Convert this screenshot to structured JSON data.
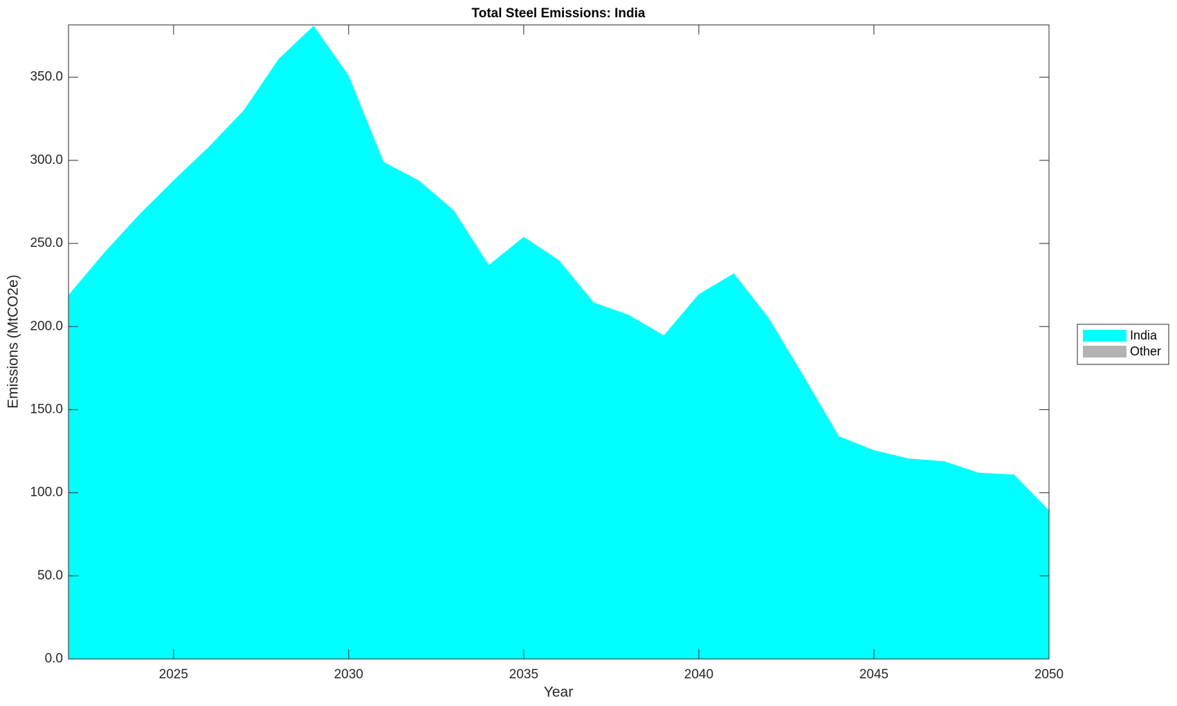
{
  "chart_data": {
    "type": "area",
    "title": "Total Steel Emissions: India",
    "x_label": "Year",
    "y_label": "Emissions (MtCO2e)",
    "x": [
      2022,
      2023,
      2024,
      2025,
      2026,
      2027,
      2028,
      2029,
      2030,
      2031,
      2032,
      2033,
      2034,
      2035,
      2036,
      2037,
      2038,
      2039,
      2040,
      2041,
      2042,
      2043,
      2044,
      2045,
      2046,
      2047,
      2048,
      2049,
      2050
    ],
    "series": [
      {
        "name": "India",
        "color": "#00ffff",
        "values": [
          219,
          244,
          267,
          288,
          308,
          330,
          361,
          381,
          351,
          299,
          288,
          270,
          237,
          254,
          240,
          214.5,
          207,
          194.7,
          219.5,
          232,
          205,
          170,
          134,
          125.6,
          120.6,
          119,
          112,
          111,
          89.4
        ]
      },
      {
        "name": "Other",
        "color": "#b3b3b3",
        "values": [
          0,
          0,
          0,
          0,
          0,
          0,
          0,
          0,
          0,
          0,
          0,
          0,
          0,
          0,
          0,
          0,
          0,
          0,
          0,
          0,
          0,
          0,
          0,
          0,
          0,
          0,
          0,
          0,
          0
        ]
      }
    ],
    "xlim": [
      2022,
      2050
    ],
    "xticks": [
      2025,
      2030,
      2035,
      2040,
      2045,
      2050
    ],
    "ylim": [
      0,
      381.5
    ],
    "yticks": [
      {
        "value": 0,
        "label": "0.0"
      },
      {
        "value": 50,
        "label": "50.0"
      },
      {
        "value": 100,
        "label": "100.0"
      },
      {
        "value": 150,
        "label": "150.0"
      },
      {
        "value": 200,
        "label": "200.0"
      },
      {
        "value": 250,
        "label": "250.0"
      },
      {
        "value": 300,
        "label": "300.0"
      },
      {
        "value": 350,
        "label": "350.0"
      }
    ],
    "legend": "right"
  }
}
